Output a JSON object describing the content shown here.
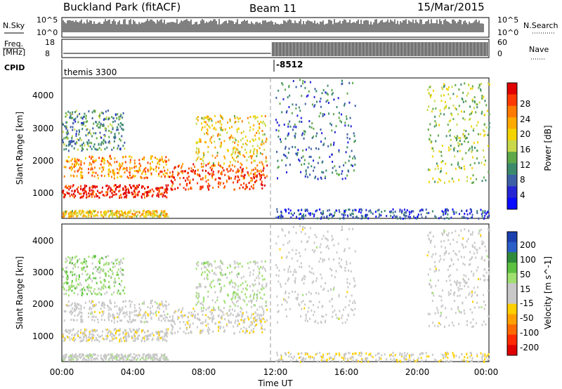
{
  "header": {
    "station": "Buckland Park (fitACF)",
    "beam": "Beam 11",
    "date": "15/Mar/2015"
  },
  "strips": {
    "nsky_label": "N.Sky",
    "nsky_ticks": [
      "10^5",
      "10^0"
    ],
    "nsearch_label": "N.Search",
    "nsearch_ticks": [
      "10^5",
      "10^0"
    ],
    "freq_label_1": "Freq.",
    "freq_label_2": "[MHz]",
    "freq_ticks": [
      "18",
      "8"
    ],
    "nave_label": "Nave",
    "nave_ticks": [
      "60",
      "0"
    ],
    "cpid_label": "CPID",
    "cpid_values": [
      "themis 3300",
      "-8512"
    ]
  },
  "panels": {
    "ylabel": "Slant Range [km]",
    "y_ticks": [
      "4000",
      "3000",
      "2000",
      "1000"
    ],
    "x_ticks": [
      "00:00",
      "04:00",
      "08:00",
      "12:00",
      "16:00",
      "20:00",
      "00:00"
    ],
    "xlabel": "Time UT"
  },
  "colorbars": {
    "power": {
      "label": "Power [dB]",
      "ticks": [
        "28",
        "24",
        "20",
        "16",
        "12",
        "8",
        "4"
      ],
      "colors": [
        "#e00000",
        "#ff3a00",
        "#ff7a00",
        "#ffaa00",
        "#f3d400",
        "#c8d84a",
        "#5ea84a",
        "#3b8a6e",
        "#3d5fa6",
        "#2525d6",
        "#0a0aff"
      ]
    },
    "velocity": {
      "label": "Velocity [m s^-1]",
      "ticks": [
        "200",
        "100",
        "50",
        "15",
        "-15",
        "-50",
        "-100",
        "-200"
      ],
      "colors": [
        "#1a3fae",
        "#2a5ec8",
        "#2f8a3a",
        "#5cc040",
        "#9fe070",
        "#c8c8c8",
        "#c8c8c8",
        "#ffd000",
        "#ffa000",
        "#ff6a00",
        "#ff2a00",
        "#e00000"
      ]
    }
  },
  "chart_data": {
    "type": "heatmap",
    "title": "Buckland Park (fitACF)   Beam 11   15/Mar/2015",
    "xlabel": "Time UT",
    "ylabel": "Slant Range [km]",
    "x_range_hours": [
      0,
      24
    ],
    "y_range_km": [
      180,
      4530
    ],
    "power_range_db": [
      0,
      30
    ],
    "velocity_range": [
      -250,
      250
    ],
    "cpid_change_hour": 11.75,
    "regions": [
      {
        "t": [
          0.0,
          6.0
        ],
        "r": [
          850,
          1250
        ],
        "power": 28,
        "velocity": -15
      },
      {
        "t": [
          0.0,
          6.0
        ],
        "r": [
          1450,
          2150
        ],
        "power": 22,
        "velocity": 0
      },
      {
        "t": [
          0.0,
          6.0
        ],
        "r": [
          250,
          450
        ],
        "power": 18,
        "velocity": 10
      },
      {
        "t": [
          0.0,
          3.5
        ],
        "r": [
          2300,
          3550
        ],
        "power": 10,
        "velocity": 60
      },
      {
        "t": [
          6.0,
          11.5
        ],
        "r": [
          1100,
          1900
        ],
        "power": 26,
        "velocity": -10
      },
      {
        "t": [
          7.5,
          11.5
        ],
        "r": [
          1900,
          3400
        ],
        "power": 18,
        "velocity": 40
      },
      {
        "t": [
          12.0,
          16.5
        ],
        "r": [
          1400,
          4500
        ],
        "power": 8,
        "velocity": 0
      },
      {
        "t": [
          20.5,
          24.0
        ],
        "r": [
          1300,
          4400
        ],
        "power": 14,
        "velocity": 0
      },
      {
        "t": [
          12.0,
          24.0
        ],
        "r": [
          200,
          500
        ],
        "power": 6,
        "velocity": -30
      }
    ]
  }
}
